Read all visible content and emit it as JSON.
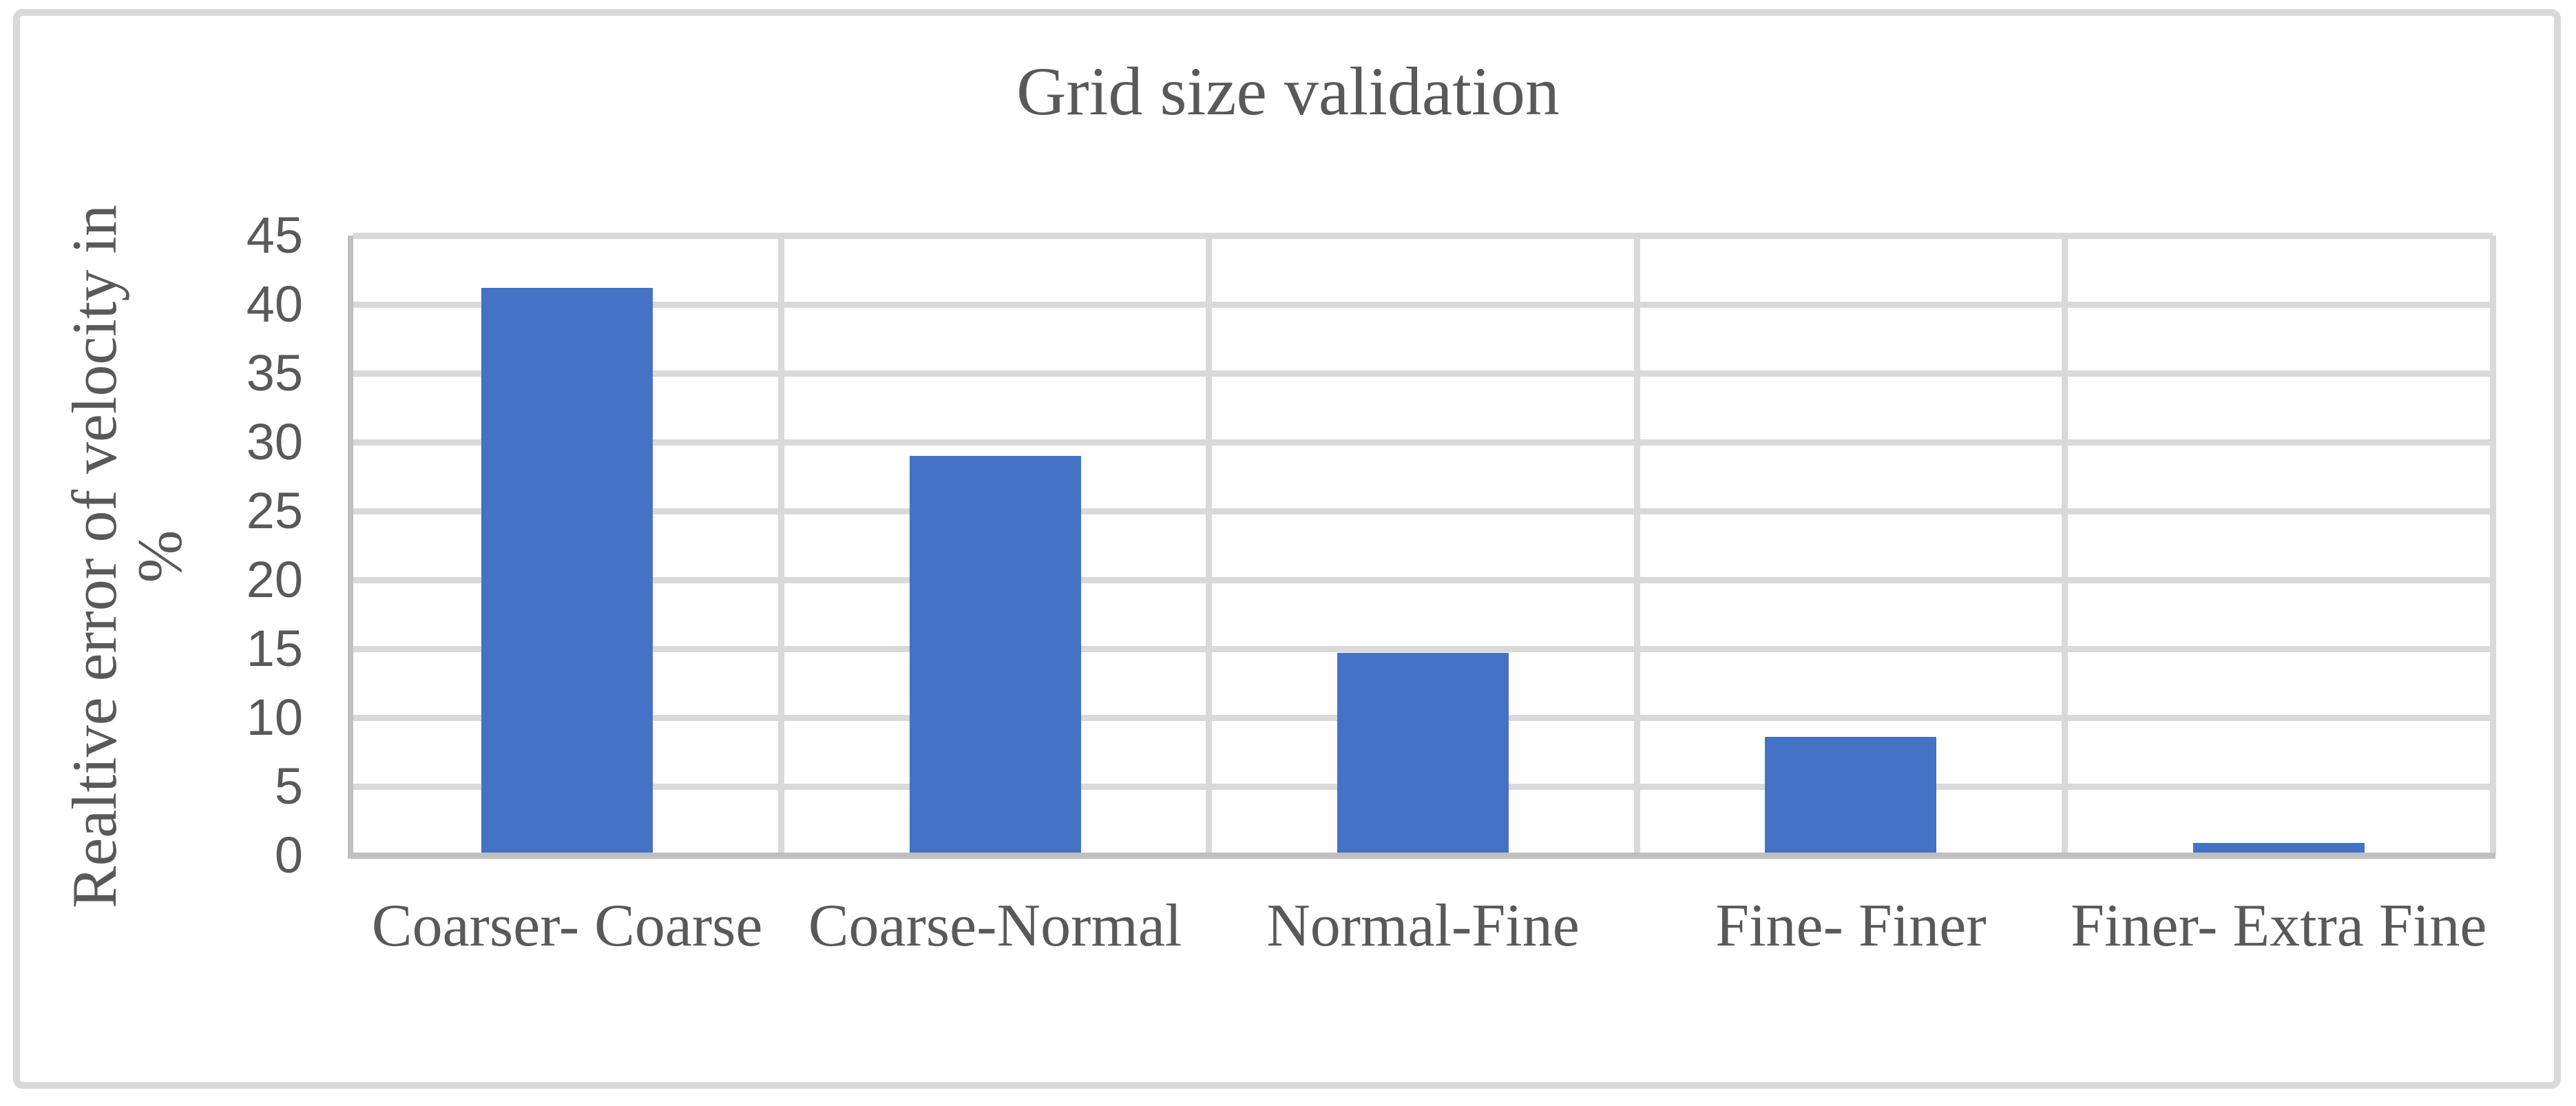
{
  "chart_data": {
    "type": "bar",
    "title": "Grid size validation",
    "categories": [
      "Coarser- Coarse",
      "Coarse-Normal",
      "Normal-Fine",
      "Fine- Finer",
      "Finer- Extra Fine"
    ],
    "values": [
      41.2,
      29,
      14.7,
      8.6,
      0.9
    ],
    "xlabel": "",
    "ylabel": "Realtive error of velocity in %",
    "ylabel_lines": [
      "Realtive error of velocity in",
      "%"
    ],
    "ylim": [
      0,
      45
    ],
    "yticks": [
      0,
      5,
      10,
      15,
      20,
      25,
      30,
      35,
      40,
      45
    ],
    "grid": true,
    "vertical_gridlines": true,
    "legend": "none",
    "series_name": "Relative error of velocity"
  },
  "colors": {
    "bar": "#4472C4",
    "gridline": "#D9D9D9",
    "axis_line": "#BFBFBF",
    "text": "#595959",
    "chart_border": "#D9D9D9",
    "background": "#FFFFFF"
  }
}
